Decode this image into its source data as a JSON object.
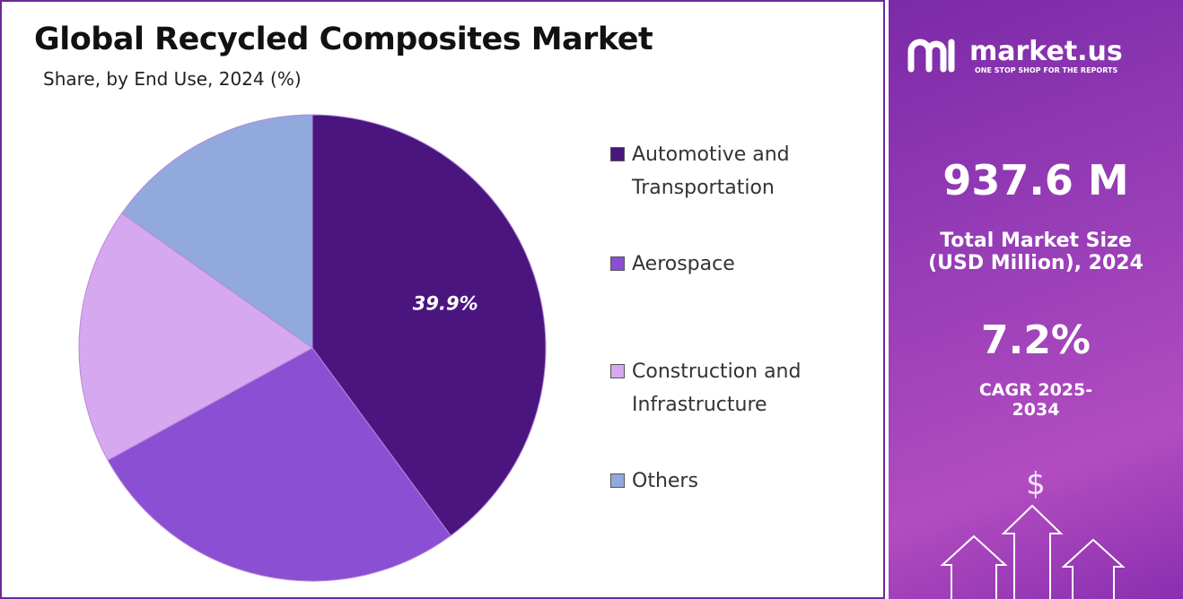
{
  "chart_data": {
    "type": "pie",
    "title": "Global Recycled Composites Market",
    "subtitle": "Share, by End Use, 2024 (%)",
    "categories": [
      "Automotive and Transportation",
      "Aerospace",
      "Construction and Infrastructure",
      "Others"
    ],
    "values": [
      39.9,
      27.1,
      17.8,
      15.2
    ],
    "value_labels": [
      "39.9%",
      null,
      null,
      null
    ],
    "colors": [
      "#4b1580",
      "#8a4fd2",
      "#d6a8ef",
      "#91a9dd"
    ],
    "legend": "right"
  },
  "sidebar": {
    "brand": "market.us",
    "tagline": "ONE STOP SHOP FOR THE REPORTS",
    "market_size": "937.6 M",
    "market_size_label": "Total Market Size (USD Million), 2024",
    "cagr": "7.2%",
    "cagr_label": "CAGR 2025-2034",
    "icon": "$"
  }
}
